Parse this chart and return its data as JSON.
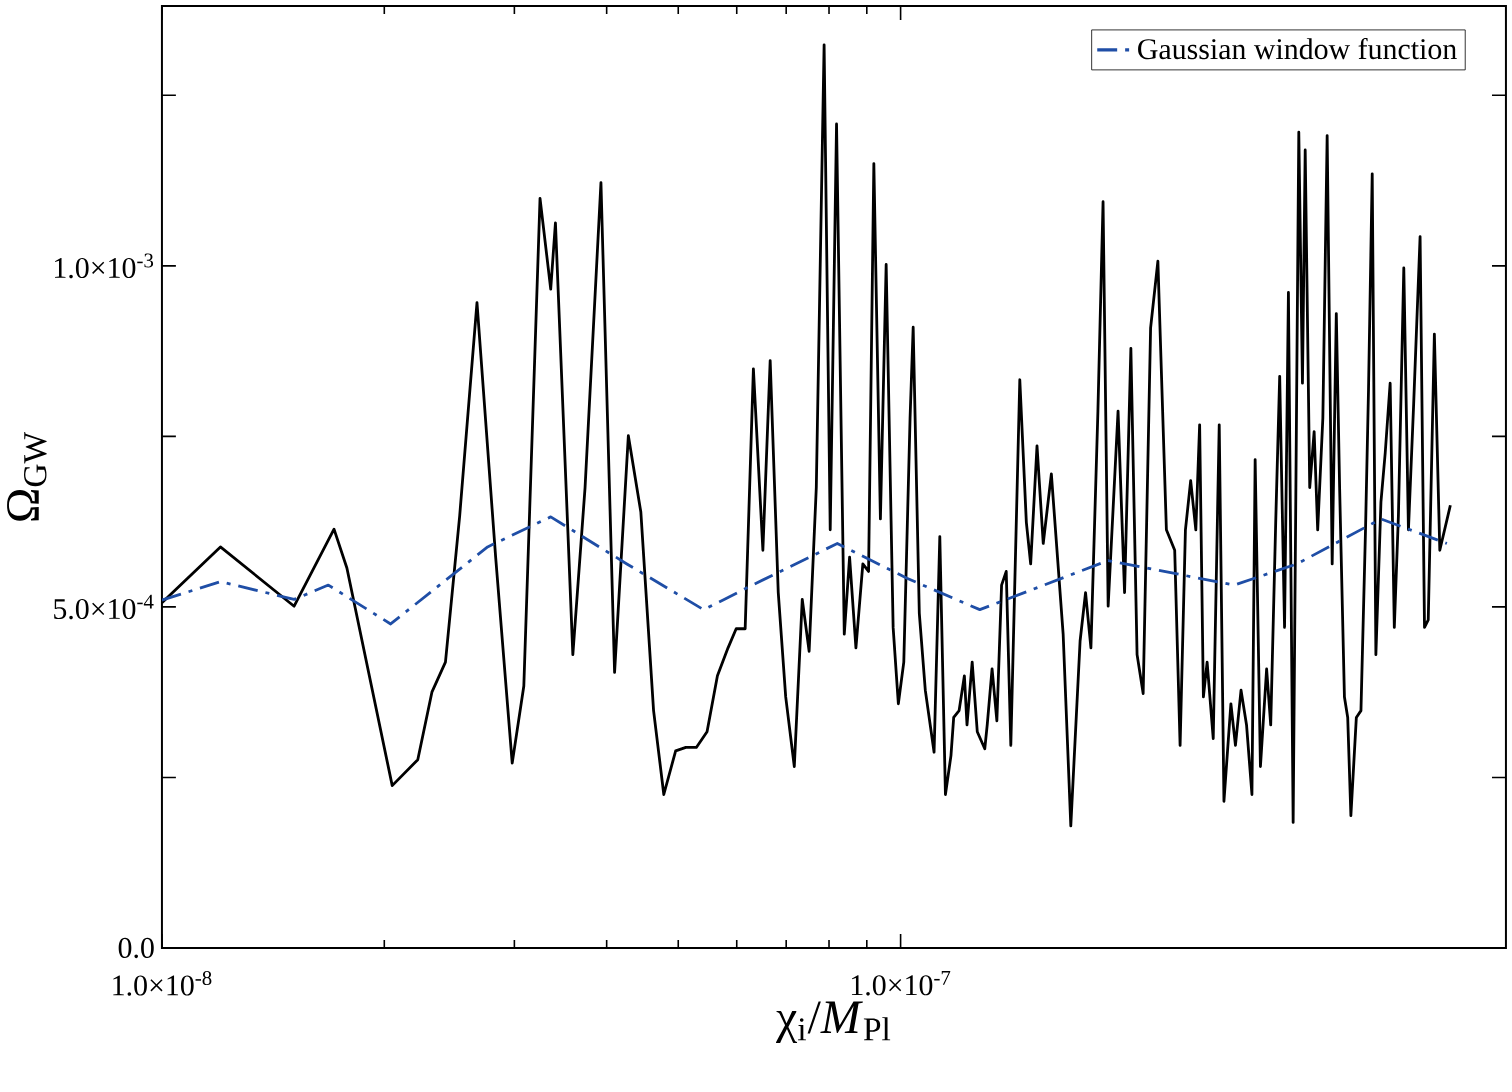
{
  "chart_data": {
    "type": "line",
    "xlabel": "χ$_{i}$/*M*$_{Pl}$",
    "ylabel": "Ω$_{GW}$",
    "log": "x",
    "xlim": [
      1e-08,
      6.6e-07
    ],
    "ylim": [
      0,
      0.001381
    ],
    "xticks": [
      {
        "value": 1e-08,
        "label": "1.0×10$^{-8}$"
      },
      {
        "value": 1e-07,
        "label": "1.0×10$^{-7}$"
      }
    ],
    "yticks": [
      {
        "value": 0,
        "label": "0.0"
      },
      {
        "value": 0.00025,
        "label": null
      },
      {
        "value": 0.0005,
        "label": "5.0×10$^{-4}$"
      },
      {
        "value": 0.00075,
        "label": null
      },
      {
        "value": 0.001,
        "label": "1.0×10$^{-3}$"
      },
      {
        "value": 0.00125,
        "label": null
      }
    ],
    "legend": "top right",
    "grid": false,
    "marker": "none",
    "series": [
      {
        "color": "#000000",
        "line_style": "solid",
        "x": [
          1e-08,
          1.2e-08,
          1.51e-08,
          1.71e-08,
          1.78e-08,
          2.05e-08,
          2.22e-08,
          2.32e-08,
          2.42e-08,
          2.53e-08,
          2.67e-08,
          2.83e-08,
          2.98e-08,
          3.09e-08,
          3.25e-08,
          3.36e-08,
          3.41e-08,
          3.6e-08,
          3.74e-08,
          3.93e-08,
          4.1e-08,
          4.28e-08,
          4.45e-08,
          4.63e-08,
          4.78e-08,
          4.96e-08,
          5.12e-08,
          5.29e-08,
          5.47e-08,
          5.65e-08,
          5.84e-08,
          5.99e-08,
          6.16e-08,
          6.32e-08,
          6.51e-08,
          6.66e-08,
          6.83e-08,
          6.99e-08,
          7.18e-08,
          7.36e-08,
          7.52e-08,
          7.69e-08,
          7.88e-08,
          8.03e-08,
          8.19e-08,
          8.39e-08,
          8.53e-08,
          8.7e-08,
          8.89e-08,
          9.05e-08,
          9.2e-08,
          9.39e-08,
          9.56e-08,
          9.77e-08,
          9.93e-08,
          1.01e-07,
          1.03e-07,
          1.04e-07,
          1.06e-07,
          1.08e-07,
          1.11e-07,
          1.13e-07,
          1.15e-07,
          1.17e-07,
          1.18e-07,
          1.2e-07,
          1.22e-07,
          1.23e-07,
          1.25e-07,
          1.27e-07,
          1.3e-07,
          1.31e-07,
          1.33e-07,
          1.35e-07,
          1.37e-07,
          1.39e-07,
          1.41e-07,
          1.45e-07,
          1.48e-07,
          1.5e-07,
          1.53e-07,
          1.56e-07,
          1.6e-07,
          1.66e-07,
          1.7e-07,
          1.75e-07,
          1.78e-07,
          1.81e-07,
          1.85e-07,
          1.88e-07,
          1.91e-07,
          1.97e-07,
          2.01e-07,
          2.05e-07,
          2.09e-07,
          2.13e-07,
          2.18e-07,
          2.23e-07,
          2.29e-07,
          2.35e-07,
          2.39e-07,
          2.43e-07,
          2.47e-07,
          2.51e-07,
          2.54e-07,
          2.57e-07,
          2.6e-07,
          2.65e-07,
          2.7e-07,
          2.74e-07,
          2.8e-07,
          2.84e-07,
          2.89e-07,
          2.94e-07,
          2.99e-07,
          3.02e-07,
          3.07e-07,
          3.13e-07,
          3.17e-07,
          3.22e-07,
          3.26e-07,
          3.31e-07,
          3.35e-07,
          3.4e-07,
          3.46e-07,
          3.5e-07,
          3.53e-07,
          3.58e-07,
          3.63e-07,
          3.67e-07,
          3.73e-07,
          3.78e-07,
          3.84e-07,
          3.89e-07,
          3.93e-07,
          3.99e-07,
          4.03e-07,
          4.07e-07,
          4.14e-07,
          4.2e-07,
          4.26e-07,
          4.3e-07,
          4.35e-07,
          4.4e-07,
          4.47e-07,
          4.53e-07,
          4.6e-07,
          4.66e-07,
          4.72e-07,
          4.8e-07,
          4.87e-07,
          4.95e-07,
          5.05e-07,
          5.12e-07,
          5.18e-07,
          5.28e-07,
          5.37e-07,
          5.55e-07
        ],
        "values": [
          0.000506,
          0.000588,
          0.000501,
          0.000614,
          0.000557,
          0.000238,
          0.000276,
          0.000375,
          0.000419,
          0.000634,
          0.000946,
          0.000573,
          0.000271,
          0.000384,
          0.001099,
          0.000966,
          0.001063,
          0.00043,
          0.000675,
          0.001122,
          0.000404,
          0.000751,
          0.000639,
          0.000348,
          0.000225,
          0.000289,
          0.000294,
          0.000294,
          0.000317,
          0.000399,
          0.00044,
          0.000468,
          0.000468,
          0.000849,
          0.000583,
          0.000861,
          0.000521,
          0.000368,
          0.000266,
          0.000511,
          0.000435,
          0.000675,
          0.001324,
          0.000613,
          0.001208,
          0.00046,
          0.000573,
          0.00044,
          0.000563,
          0.000552,
          0.00115,
          0.000629,
          0.001002,
          0.00047,
          0.000358,
          0.000419,
          0.000777,
          0.00091,
          0.000491,
          0.000378,
          0.000287,
          0.000603,
          0.000225,
          0.000282,
          0.000338,
          0.000348,
          0.000399,
          0.000327,
          0.000419,
          0.000317,
          0.000292,
          0.000327,
          0.000409,
          0.000333,
          0.000532,
          0.000552,
          0.000297,
          0.000833,
          0.000624,
          0.000563,
          0.000736,
          0.000593,
          0.000695,
          0.00046,
          0.000179,
          0.00045,
          0.000521,
          0.00044,
          0.000787,
          0.001094,
          0.000501,
          0.000787,
          0.000521,
          0.000879,
          0.00043,
          0.000373,
          0.000909,
          0.001007,
          0.000613,
          0.000583,
          0.000297,
          0.000613,
          0.000685,
          0.000613,
          0.000767,
          0.000368,
          0.000419,
          0.000307,
          0.000767,
          0.000215,
          0.000358,
          0.000297,
          0.000378,
          0.000327,
          0.000225,
          0.000716,
          0.000266,
          0.000409,
          0.000327,
          0.000624,
          0.000838,
          0.00047,
          0.000961,
          0.000184,
          0.001196,
          0.000828,
          0.00117,
          0.000675,
          0.000757,
          0.000613,
          0.000777,
          0.001191,
          0.000563,
          0.00093,
          0.000675,
          0.000368,
          0.000338,
          0.000194,
          0.000338,
          0.000348,
          0.000613,
          0.000818,
          0.001135,
          0.00043,
          0.000654,
          0.000726,
          0.000828,
          0.00047,
          0.000634,
          0.000997,
          0.000613,
          0.000798,
          0.001043,
          0.00047,
          0.000481,
          0.0009,
          0.000583,
          0.000649
        ]
      },
      {
        "name": "Gaussian window function",
        "color": "#1f4ea6",
        "line_style": "dashdot",
        "x": [
          1e-08,
          1.2e-08,
          1.51e-08,
          1.68e-08,
          2.04e-08,
          2.76e-08,
          3.36e-08,
          4.26e-08,
          5.41e-08,
          5.77e-08,
          6.3e-08,
          8.21e-08,
          1.02e-07,
          1.28e-07,
          1.91e-07,
          2.83e-07,
          3.44e-07,
          4.47e-07,
          5.49e-07
        ],
        "values": [
          0.00051,
          0.000537,
          0.000511,
          0.000532,
          0.000475,
          0.000588,
          0.000632,
          0.000563,
          0.000496,
          0.000511,
          0.000532,
          0.000593,
          0.000542,
          0.000496,
          0.000568,
          0.000532,
          0.000563,
          0.000629,
          0.000593
        ]
      }
    ]
  }
}
